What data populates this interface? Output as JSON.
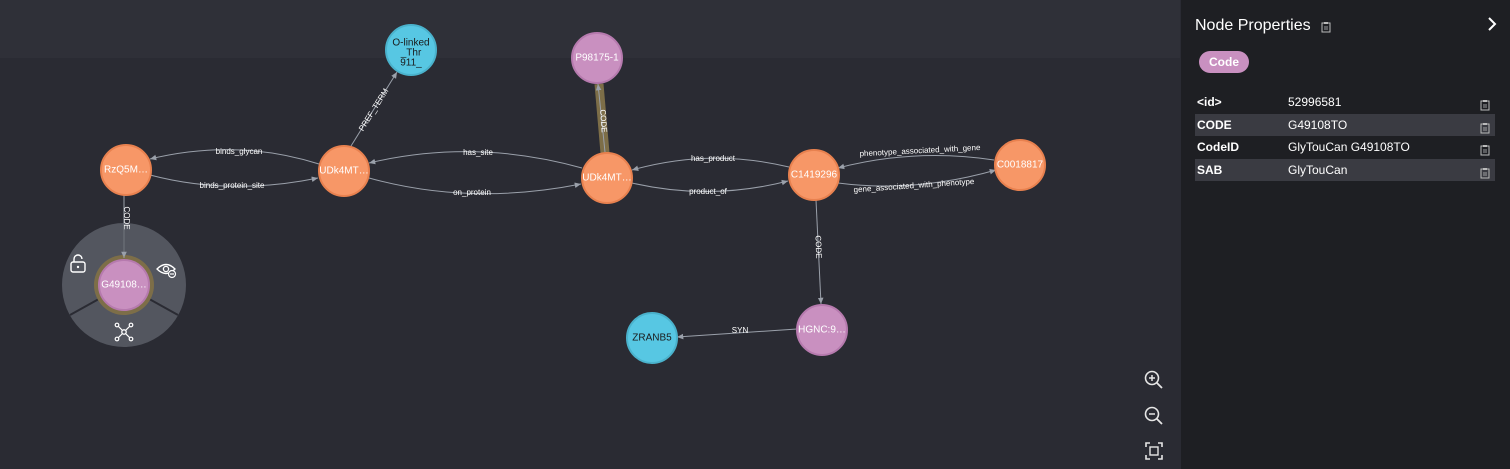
{
  "colors": {
    "orange_node": "#f79767",
    "orange_stroke": "#e8814f",
    "pink_node": "#c990c0",
    "pink_stroke": "#b67aae",
    "blue_node": "#57c7e3",
    "blue_stroke": "#4ab2cc",
    "background": "#2a2b33",
    "panel_bg": "#1e1f23",
    "badge": "#c990c0"
  },
  "graph": {
    "nodes": {
      "olinked": {
        "line1": "O-linked",
        "line2": "_Thr",
        "line3": "911_"
      },
      "p98175": {
        "label": "P98175-1"
      },
      "rzq5m": {
        "label": "RzQ5M…"
      },
      "udk1": {
        "label": "UDk4MT…"
      },
      "udk2": {
        "label": "UDk4MT…"
      },
      "c1419296": {
        "label": "C1419296"
      },
      "c0018817": {
        "label": "C0018817"
      },
      "g49108": {
        "label": "G49108…"
      },
      "hgnc": {
        "label": "HGNC:9…"
      },
      "zranb5": {
        "label": "ZRANB5"
      }
    },
    "edges": {
      "binds_glycan": "binds_glycan",
      "binds_protein_site": "binds_protein_site",
      "pref_term": "PREF_TERM",
      "has_site": "has_site",
      "on_protein": "on_protein",
      "code_p98": "CODE",
      "has_product": "has_product",
      "product_of": "product_of",
      "phenotype_associated_with_gene": "phenotype_associated_with_gene",
      "gene_associated_with_phenotype": "gene_associated_with_phenotype",
      "code_hgnc": "CODE",
      "syn": "SYN",
      "code_g49": "CODE"
    }
  },
  "context_menu": {
    "icons": [
      "unlock-icon",
      "hide-icon",
      "expand-icon"
    ]
  },
  "zoom_controls": {
    "icons": [
      "zoom-in-icon",
      "zoom-out-icon",
      "fit-screen-icon"
    ]
  },
  "panel": {
    "title": "Node Properties",
    "badge": "Code",
    "properties": [
      {
        "key": "<id>",
        "value": "52996581"
      },
      {
        "key": "CODE",
        "value": "G49108TO"
      },
      {
        "key": "CodeID",
        "value": "GlyTouCan G49108TO"
      },
      {
        "key": "SAB",
        "value": "GlyTouCan"
      }
    ]
  }
}
